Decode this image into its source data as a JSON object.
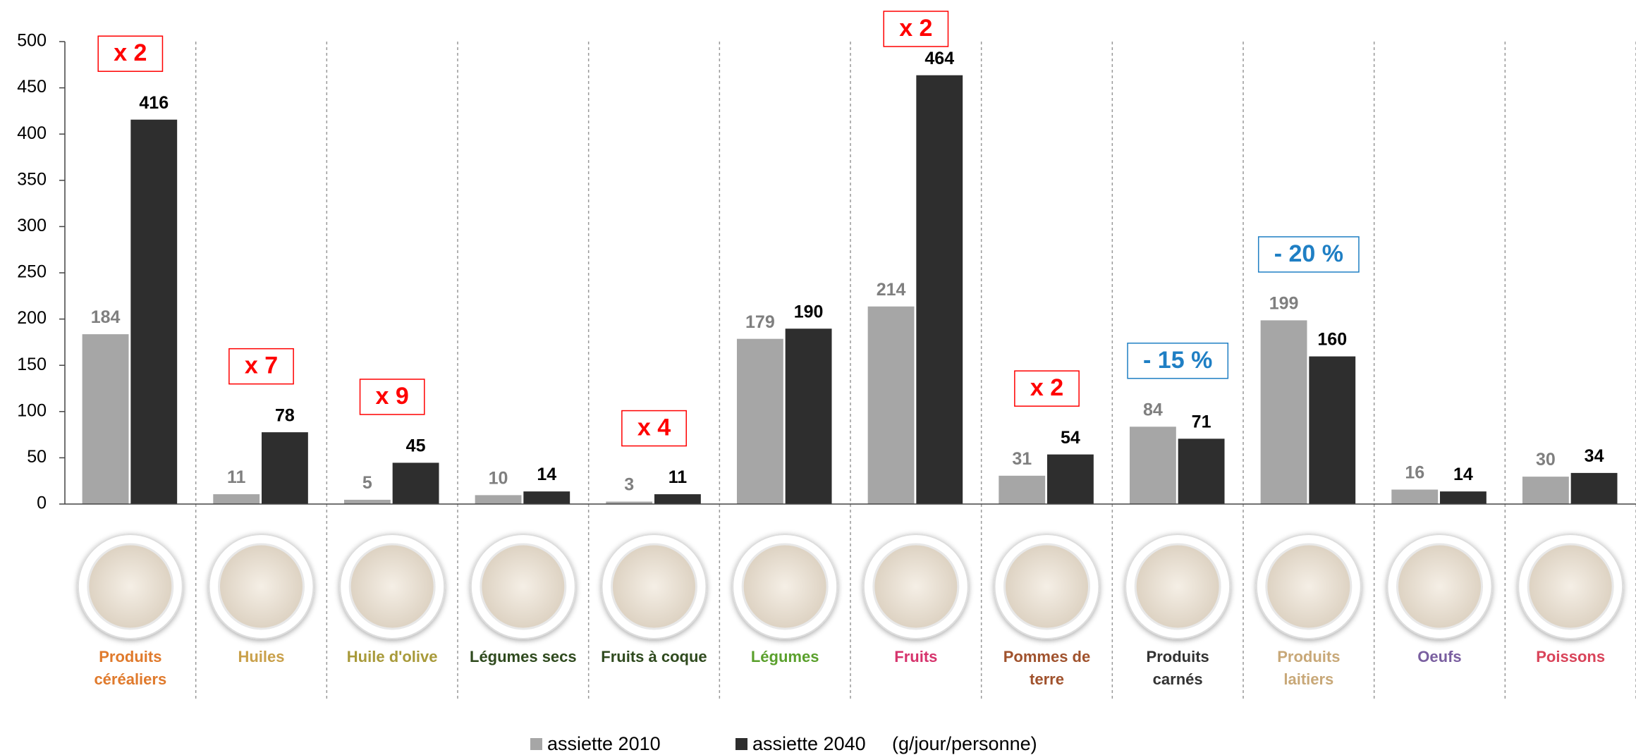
{
  "chart_data": {
    "type": "bar",
    "categories": [
      "Produits\ncéréaliers",
      "Huiles",
      "Huile d'olive",
      "Légumes secs",
      "Fruits à coque",
      "Légumes",
      "Fruits",
      "Pommes de\nterre",
      "Produits\ncarnés",
      "Produits\nlaitiers",
      "Oeufs",
      "Poissons"
    ],
    "category_colors": [
      "#e07a2c",
      "#c9a04a",
      "#a89a3a",
      "#2f4a1e",
      "#2f4a1e",
      "#5aa02c",
      "#d6336c",
      "#a0522d",
      "#333333",
      "#c8a878",
      "#7a5fa0",
      "#d9445a"
    ],
    "series": [
      {
        "name": "assiette 2010",
        "color": "#a6a6a6",
        "label_color": "#7f7f7f",
        "values": [
          184,
          11,
          5,
          10,
          3,
          179,
          214,
          31,
          84,
          199,
          16,
          30
        ]
      },
      {
        "name": "assiette 2040",
        "color": "#2e2e2e",
        "label_color": "#000000",
        "values": [
          416,
          78,
          45,
          14,
          11,
          190,
          464,
          54,
          71,
          160,
          14,
          34
        ]
      }
    ],
    "unit": "(g/jour/personne)",
    "annotations": [
      {
        "category": 0,
        "text": "x 2",
        "color": "#ff0000"
      },
      {
        "category": 1,
        "text": "x 7",
        "color": "#ff0000"
      },
      {
        "category": 2,
        "text": "x 9",
        "color": "#ff0000"
      },
      {
        "category": 4,
        "text": "x 4",
        "color": "#ff0000"
      },
      {
        "category": 6,
        "text": "x 2",
        "color": "#ff0000"
      },
      {
        "category": 7,
        "text": "x 2",
        "color": "#ff0000"
      },
      {
        "category": 8,
        "text": "- 15 %",
        "color": "#1f7fc4"
      },
      {
        "category": 9,
        "text": "- 20 %",
        "color": "#1f7fc4"
      }
    ],
    "ylim": [
      0,
      500
    ],
    "yticks": [
      0,
      50,
      100,
      150,
      200,
      250,
      300,
      350,
      400,
      450,
      500
    ]
  }
}
